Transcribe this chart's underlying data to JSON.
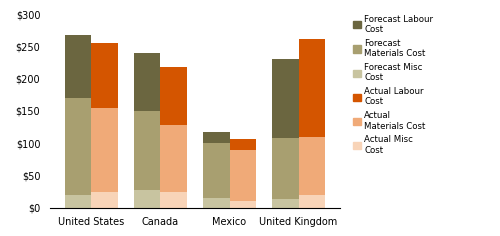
{
  "categories": [
    "United States",
    "Canada",
    "Mexico",
    "United Kingdom"
  ],
  "forecast": {
    "misc": [
      20,
      27,
      15,
      13
    ],
    "materials": [
      150,
      123,
      85,
      95
    ],
    "labour": [
      98,
      90,
      18,
      122
    ]
  },
  "actual": {
    "misc": [
      25,
      25,
      10,
      20
    ],
    "materials": [
      130,
      103,
      80,
      90
    ],
    "labour": [
      100,
      90,
      17,
      152
    ]
  },
  "colors": {
    "forecast_misc": "#c8c4a0",
    "forecast_materials": "#a89f70",
    "forecast_labour": "#6b6640",
    "actual_misc": "#f8d4b8",
    "actual_materials": "#f0aa78",
    "actual_labour": "#d45500"
  },
  "ylim": [
    0,
    300
  ],
  "yticks": [
    0,
    50,
    100,
    150,
    200,
    250,
    300
  ],
  "ytick_labels": [
    "$0",
    "$50",
    "$100",
    "$150",
    "$200",
    "$250",
    "$300"
  ],
  "background_color": "#ffffff"
}
